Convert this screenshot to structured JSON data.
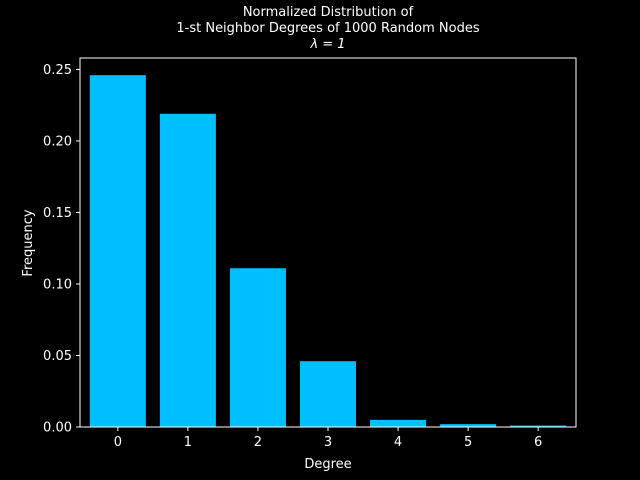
{
  "chart_data": {
    "type": "bar",
    "title_lines": [
      "Normalized Distribution of",
      "1-st Neighbor Degrees of 1000 Random Nodes",
      "λ = 1"
    ],
    "xlabel": "Degree",
    "ylabel": "Frequency",
    "categories": [
      "0",
      "1",
      "2",
      "3",
      "4",
      "5",
      "6"
    ],
    "values": [
      0.246,
      0.219,
      0.111,
      0.046,
      0.005,
      0.002,
      0.001
    ],
    "ylim": [
      0,
      0.258
    ],
    "yticks": [
      "0.00",
      "0.05",
      "0.10",
      "0.15",
      "0.20",
      "0.25"
    ],
    "grid": false,
    "legend": "none",
    "colors": {
      "background": "#000000",
      "bar": "#00bfff",
      "axes": "#ffffff",
      "text": "#ffffff"
    }
  }
}
